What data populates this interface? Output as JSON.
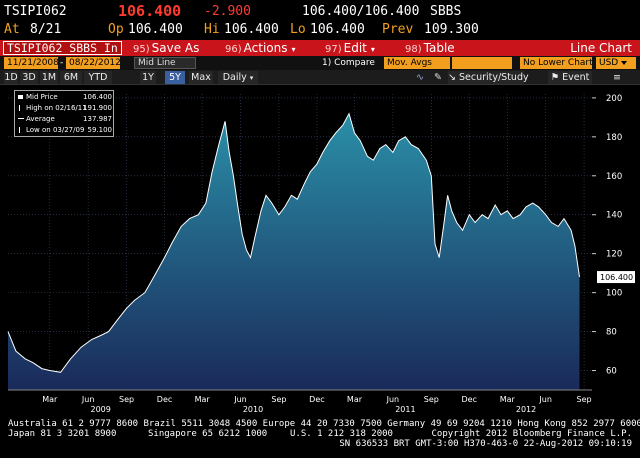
{
  "quote": {
    "ticker": "TSIPI062",
    "last": "106.400",
    "change": "-2.900",
    "bid_ask": "106.400/106.400",
    "source": "SBBS",
    "at_label": "At",
    "at_value": "8/21",
    "open_label": "Op",
    "open_value": "106.400",
    "high_label": "Hi",
    "high_value": "106.400",
    "low_label": "Lo",
    "low_value": "106.400",
    "prev_label": "Prev",
    "prev_value": "109.300"
  },
  "toolbar": {
    "security": "TSIPI062 SBBS In",
    "save": {
      "num": "95)",
      "label": "Save As"
    },
    "actions": {
      "num": "96)",
      "label": "Actions"
    },
    "edit": {
      "num": "97)",
      "label": "Edit"
    },
    "table": {
      "num": "98)",
      "label": "Table"
    },
    "view": "Line Chart"
  },
  "controls": {
    "start_date": "11/21/2008",
    "end_date": "08/22/2012",
    "line_field": "Mid Line",
    "compare": "1) Compare",
    "mov_avgs": "Mov. Avgs",
    "lower_chart": "No Lower Chart",
    "currency": "USD"
  },
  "periods": {
    "items": [
      "1D",
      "3D",
      "1M",
      "6M",
      "YTD",
      "1Y",
      "5Y",
      "Max"
    ],
    "selected": "5Y",
    "frequency": "Daily",
    "security_study": "Security/Study",
    "event": "Event"
  },
  "legend": {
    "mid_label": "Mid Price",
    "mid_value": "106.400",
    "high_label": "High on 02/16/11",
    "high_value": "191.900",
    "avg_label": "Average",
    "avg_value": "137.987",
    "low_label": "Low on 03/27/09",
    "low_value": "59.100",
    "colors": {
      "mid": "#ffffff",
      "high": "#ffffff",
      "avg": "#ffffff",
      "low": "#ffffff"
    }
  },
  "chart_data": {
    "type": "area",
    "ylim": [
      50,
      202
    ],
    "yticks": [
      60,
      80,
      100,
      120,
      140,
      160,
      180,
      200
    ],
    "last_value_label": "106.400",
    "x": [
      "2008-11-21",
      "2008-12-10",
      "2009-01-01",
      "2009-01-20",
      "2009-02-10",
      "2009-03-01",
      "2009-03-27",
      "2009-04-20",
      "2009-05-15",
      "2009-06-10",
      "2009-07-01",
      "2009-07-20",
      "2009-08-10",
      "2009-09-01",
      "2009-09-20",
      "2009-10-15",
      "2009-11-05",
      "2009-12-01",
      "2009-12-20",
      "2010-01-10",
      "2010-01-30",
      "2010-02-20",
      "2010-03-10",
      "2010-03-25",
      "2010-04-10",
      "2010-04-25",
      "2010-05-05",
      "2010-05-15",
      "2010-05-25",
      "2010-06-05",
      "2010-06-15",
      "2010-06-25",
      "2010-07-05",
      "2010-07-20",
      "2010-08-01",
      "2010-08-15",
      "2010-09-01",
      "2010-09-15",
      "2010-10-01",
      "2010-10-15",
      "2010-11-01",
      "2010-11-15",
      "2010-12-01",
      "2010-12-15",
      "2011-01-01",
      "2011-01-15",
      "2011-02-01",
      "2011-02-16",
      "2011-03-01",
      "2011-03-15",
      "2011-04-01",
      "2011-04-15",
      "2011-05-01",
      "2011-05-15",
      "2011-06-01",
      "2011-06-15",
      "2011-07-01",
      "2011-07-15",
      "2011-08-01",
      "2011-08-20",
      "2011-09-01",
      "2011-09-10",
      "2011-09-20",
      "2011-10-01",
      "2011-10-10",
      "2011-10-20",
      "2011-11-01",
      "2011-11-15",
      "2011-12-01",
      "2011-12-15",
      "2012-01-01",
      "2012-01-15",
      "2012-02-01",
      "2012-02-15",
      "2012-03-01",
      "2012-03-15",
      "2012-04-01",
      "2012-04-15",
      "2012-05-01",
      "2012-05-15",
      "2012-06-01",
      "2012-06-15",
      "2012-07-01",
      "2012-07-15",
      "2012-08-01",
      "2012-08-10",
      "2012-08-21"
    ],
    "y": [
      80,
      70,
      66,
      64,
      61,
      60,
      59.1,
      66,
      72,
      76,
      78,
      80,
      86,
      92,
      96,
      100,
      108,
      118,
      126,
      134,
      138,
      140,
      146,
      162,
      176,
      188,
      172,
      160,
      145,
      130,
      122,
      118,
      128,
      142,
      150,
      146,
      140,
      144,
      150,
      148,
      156,
      162,
      166,
      172,
      178,
      182,
      186,
      191.9,
      182,
      178,
      170,
      168,
      174,
      176,
      172,
      178,
      180,
      176,
      174,
      168,
      160,
      125,
      118,
      135,
      150,
      142,
      136,
      132,
      140,
      136,
      140,
      138,
      145,
      140,
      142,
      138,
      140,
      144,
      146,
      144,
      140,
      136,
      134,
      138,
      132,
      124,
      108
    ],
    "xticks": [
      {
        "label": "Mar",
        "date": "2009-03-01"
      },
      {
        "label": "Jun",
        "date": "2009-06-01"
      },
      {
        "label": "Sep",
        "date": "2009-09-01"
      },
      {
        "label": "Dec",
        "date": "2009-12-01"
      },
      {
        "label": "Mar",
        "date": "2010-03-01"
      },
      {
        "label": "Jun",
        "date": "2010-06-01"
      },
      {
        "label": "Sep",
        "date": "2010-09-01"
      },
      {
        "label": "Dec",
        "date": "2010-12-01"
      },
      {
        "label": "Mar",
        "date": "2011-03-01"
      },
      {
        "label": "Jun",
        "date": "2011-06-01"
      },
      {
        "label": "Sep",
        "date": "2011-09-01"
      },
      {
        "label": "Dec",
        "date": "2011-12-01"
      },
      {
        "label": "Mar",
        "date": "2012-03-01"
      },
      {
        "label": "Jun",
        "date": "2012-06-01"
      },
      {
        "label": "Sep",
        "date": "2012-09-01"
      }
    ],
    "years": [
      {
        "label": "2009",
        "date": "2009-07-01"
      },
      {
        "label": "2010",
        "date": "2010-07-01"
      },
      {
        "label": "2011",
        "date": "2011-07-01"
      },
      {
        "label": "2012",
        "date": "2012-04-15"
      }
    ],
    "colors": {
      "fill_top": "#2a8fa8",
      "fill_bottom": "#1a2a5a",
      "line": "#ffffff"
    }
  },
  "footer": {
    "line1": "Australia 61 2 9777 8600 Brazil 5511 3048 4500 Europe 44 20 7330 7500 Germany 49 69 9204 1210 Hong Kong 852 2977 6000",
    "line2a": "Japan 81 3 3201 8900",
    "line2b": "Singapore 65 6212 1000",
    "line2c": "U.S. 1 212 318 2000",
    "line2d": "Copyright 2012 Bloomberg Finance L.P.",
    "line3": "SN 636533 BRT  GMT-3:00 H370-463-0 22-Aug-2012 09:10:19"
  }
}
